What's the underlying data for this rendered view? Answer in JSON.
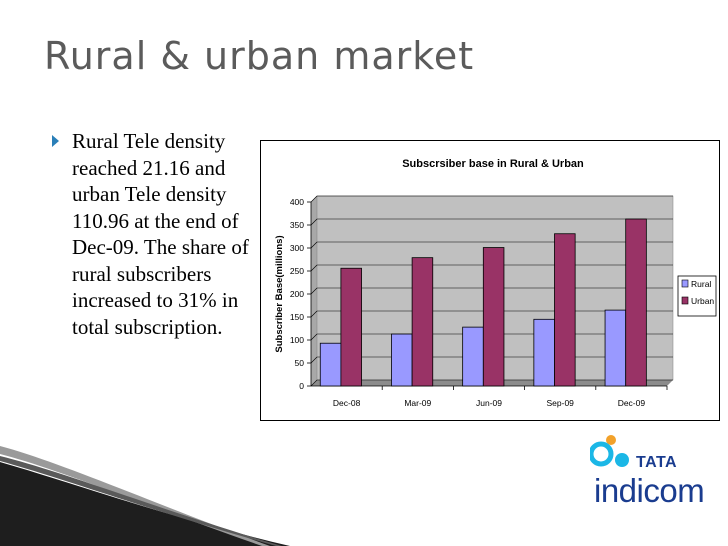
{
  "slide": {
    "title": "Rural & urban market",
    "bullet": "Rural Tele density reached 21.16 and urban Tele density 110.96 at the end of Dec-09. The share of rural subscribers increased to 31% in total subscription."
  },
  "logo": {
    "brand": "TATA",
    "product": "indicom"
  },
  "chart_data": {
    "type": "bar",
    "title": "Subscrsiber base in Rural & Urban",
    "xlabel": "",
    "ylabel": "Subscriber Base(millions)",
    "ylim": [
      0,
      400
    ],
    "yticks": [
      0,
      50,
      100,
      150,
      200,
      250,
      300,
      350,
      400
    ],
    "categories": [
      "Dec-08",
      "Mar-09",
      "Jun-09",
      "Sep-09",
      "Dec-09"
    ],
    "series": [
      {
        "name": "Rural",
        "values": [
          93,
          113,
          128,
          145,
          165
        ],
        "color": "#9999ff"
      },
      {
        "name": "Urban",
        "values": [
          256,
          279,
          301,
          331,
          363
        ],
        "color": "#993366"
      }
    ],
    "grid": true,
    "legend": "right",
    "plot_background": "#c0c0c0"
  }
}
